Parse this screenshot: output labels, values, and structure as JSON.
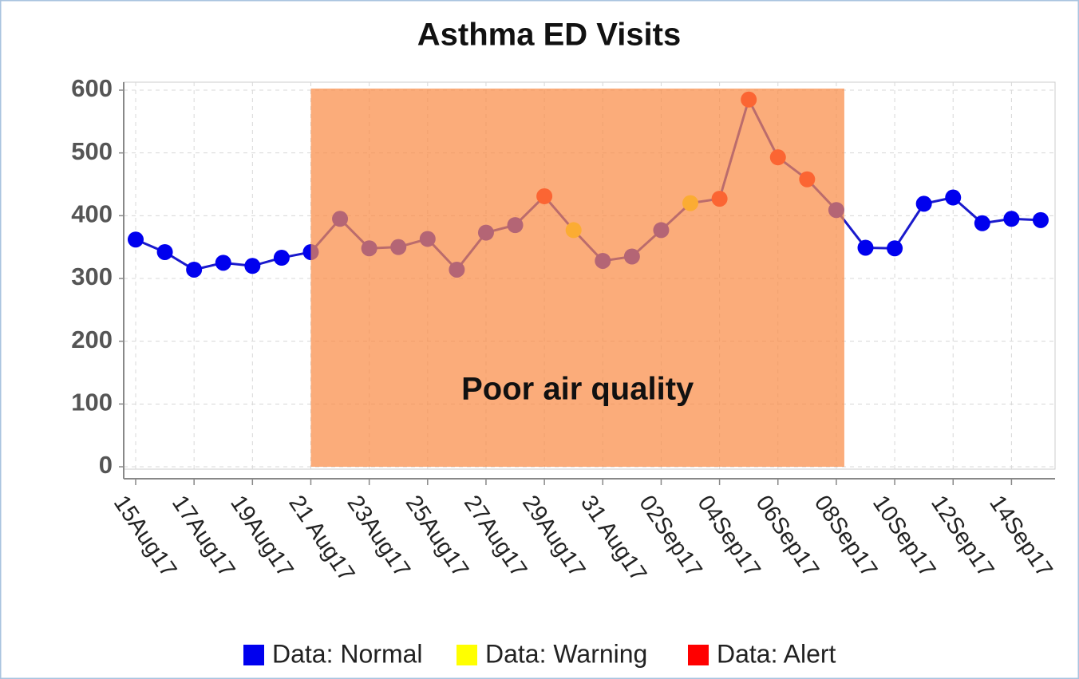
{
  "chart_data": {
    "type": "line",
    "title": "Asthma ED Visits",
    "categories": [
      "15Aug17",
      null,
      "17Aug17",
      null,
      "19Aug17",
      null,
      "21 Aug17",
      null,
      "23Aug17",
      null,
      "25Aug17",
      null,
      "27Aug17",
      null,
      "29Aug17",
      null,
      "31 Aug17",
      null,
      "02Sep17",
      null,
      "04Sep17",
      null,
      "06Sep17",
      null,
      "08Sep17",
      null,
      "10Sep17",
      null,
      "12Sep17",
      null,
      "14Sep17",
      null
    ],
    "values": [
      362,
      342,
      314,
      325,
      320,
      333,
      342,
      395,
      348,
      350,
      363,
      314,
      373,
      385,
      431,
      377,
      328,
      335,
      377,
      420,
      427,
      585,
      493,
      458,
      409,
      349,
      348,
      419,
      429,
      388,
      395,
      393
    ],
    "point_colors": [
      "#0000ee",
      "#0000ee",
      "#0000ee",
      "#0000ee",
      "#0000ee",
      "#0000ee",
      "#0000ee",
      "#0000ee",
      "#0000ee",
      "#0000ee",
      "#0000ee",
      "#0000ee",
      "#0000ee",
      "#0000ee",
      "#ff0000",
      "#ffff00",
      "#0000ee",
      "#0000ee",
      "#0000ee",
      "#ffff00",
      "#ff0000",
      "#ff0000",
      "#ff0000",
      "#ff0000",
      "#0000ee",
      "#0000ee",
      "#0000ee",
      "#0000ee",
      "#0000ee",
      "#0000ee",
      "#0000ee",
      "#0000ee"
    ],
    "line_color": "#1a1acc",
    "legend": [
      {
        "name": "Data: Normal",
        "color": "#0000ee"
      },
      {
        "name": "Data: Warning",
        "color": "#ffff00"
      },
      {
        "name": "Data: Alert",
        "color": "#ff0000"
      }
    ],
    "highlight": {
      "label": "Poor air quality",
      "from": "21 Aug17",
      "to": "08Sep17",
      "color": "#fa8c46"
    },
    "ylim": [
      0,
      600
    ],
    "yticks": [
      0,
      100,
      200,
      300,
      400,
      500,
      600
    ],
    "grid": true
  }
}
